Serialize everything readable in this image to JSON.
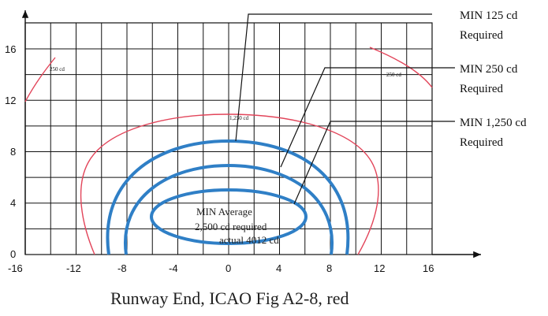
{
  "figure": {
    "caption": "Runway End, ICAO Fig A2-8, red",
    "x_ticks": [
      "-16",
      "-12",
      "-8",
      "-4",
      "0",
      "4",
      "8",
      "12",
      "16"
    ],
    "y_ticks": [
      "0",
      "4",
      "8",
      "12",
      "16"
    ],
    "red_contour_labels": {
      "left": "250 cd",
      "right": "250 cd",
      "center": "1,250 cd"
    },
    "callouts": [
      {
        "line1": "MIN 125 cd",
        "line2": "Required"
      },
      {
        "line1": "MIN 250 cd",
        "line2": "Required"
      },
      {
        "line1": "MIN 1,250 cd",
        "line2": "Required"
      }
    ],
    "center_label": {
      "line1": "MIN Average",
      "line2": "2,500 cd required",
      "line3": "actual 4012 cd"
    },
    "colors": {
      "grid": "#111111",
      "red_contour": "#e2455a",
      "blue_contour": "#2f7fc6",
      "text": "#111111"
    }
  }
}
